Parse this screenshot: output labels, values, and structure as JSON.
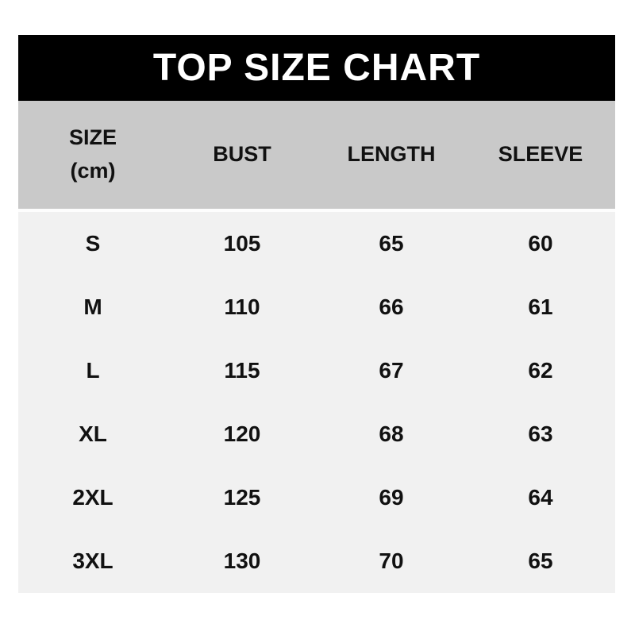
{
  "title": "TOP SIZE CHART",
  "colors": {
    "title_bar_bg": "#000000",
    "title_text": "#ffffff",
    "header_row_bg": "#c9c9c9",
    "body_bg": "#f1f1f1",
    "text": "#111111",
    "page_bg": "#ffffff"
  },
  "chart_data": {
    "type": "table",
    "title": "TOP SIZE CHART",
    "unit": "(cm)",
    "columns": [
      "SIZE",
      "BUST",
      "LENGTH",
      "SLEEVE"
    ],
    "rows": [
      [
        "S",
        "105",
        "65",
        "60"
      ],
      [
        "M",
        "110",
        "66",
        "61"
      ],
      [
        "L",
        "115",
        "67",
        "62"
      ],
      [
        "XL",
        "120",
        "68",
        "63"
      ],
      [
        "2XL",
        "125",
        "69",
        "64"
      ],
      [
        "3XL",
        "130",
        "70",
        "65"
      ]
    ]
  }
}
